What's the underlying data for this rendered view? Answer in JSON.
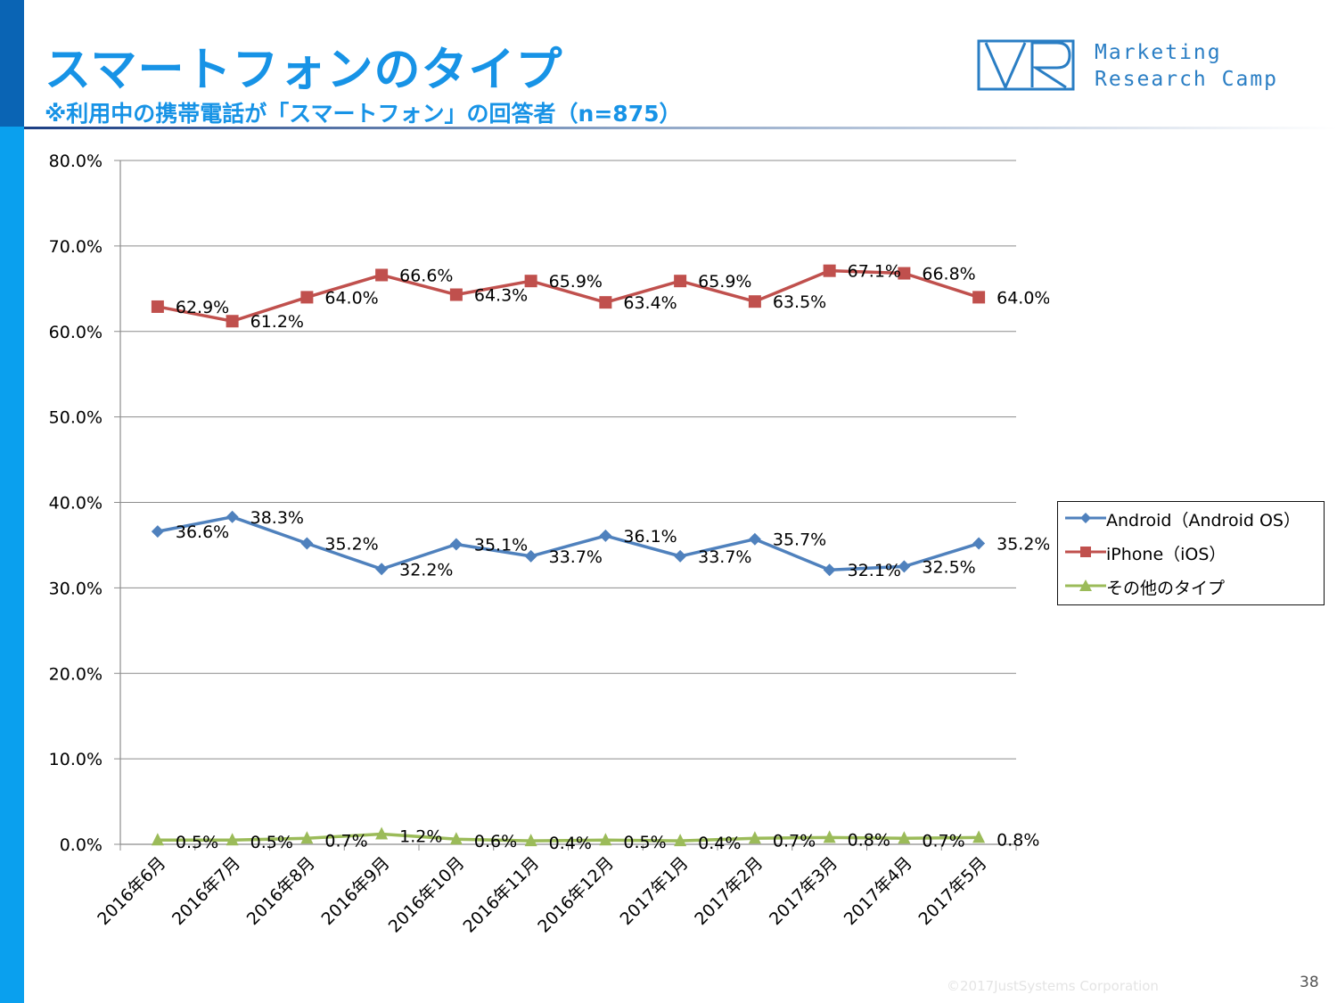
{
  "slide": {
    "title": "スマートフォンのタイプ",
    "subtitle": "※利用中の携帯電話が「スマートフォン」の回答者（n=875）",
    "logo_line1": "Marketing",
    "logo_line2": "Research Camp",
    "copyright": "©2017JustSystems Corporation",
    "page_number": "38"
  },
  "colors": {
    "accent": "#1793e6",
    "sidebar_dark": "#0a64b4",
    "sidebar_light": "#0aa0ee",
    "android": "#4f81bd",
    "iphone": "#c0504d",
    "other": "#9bbb59"
  },
  "chart_data": {
    "type": "line",
    "title": "",
    "xlabel": "",
    "ylabel": "",
    "ylim": [
      0,
      80
    ],
    "ytick_labels": [
      "0.0%",
      "10.0%",
      "20.0%",
      "30.0%",
      "40.0%",
      "50.0%",
      "60.0%",
      "70.0%",
      "80.0%"
    ],
    "grid": true,
    "legend_position": "right",
    "categories": [
      "2016年6月",
      "2016年7月",
      "2016年8月",
      "2016年9月",
      "2016年10月",
      "2016年11月",
      "2016年12月",
      "2017年1月",
      "2017年2月",
      "2017年3月",
      "2017年4月",
      "2017年5月"
    ],
    "series": [
      {
        "name": "Android（Android OS）",
        "color": "#4f81bd",
        "marker": "diamond",
        "values": [
          36.6,
          38.3,
          35.2,
          32.2,
          35.1,
          33.7,
          36.1,
          33.7,
          35.7,
          32.1,
          32.5,
          35.2
        ],
        "labels": [
          "36.6%",
          "38.3%",
          "35.2%",
          "32.2%",
          "35.1%",
          "33.7%",
          "36.1%",
          "33.7%",
          "35.7%",
          "32.1%",
          "32.5%",
          "35.2%"
        ]
      },
      {
        "name": "iPhone（iOS）",
        "color": "#c0504d",
        "marker": "square",
        "values": [
          62.9,
          61.2,
          64.0,
          66.6,
          64.3,
          65.9,
          63.4,
          65.9,
          63.5,
          67.1,
          66.8,
          64.0
        ],
        "labels": [
          "62.9%",
          "61.2%",
          "64.0%",
          "66.6%",
          "64.3%",
          "65.9%",
          "63.4%",
          "65.9%",
          "63.5%",
          "67.1%",
          "66.8%",
          "64.0%"
        ]
      },
      {
        "name": "その他のタイプ",
        "color": "#9bbb59",
        "marker": "triangle",
        "values": [
          0.5,
          0.5,
          0.7,
          1.2,
          0.6,
          0.4,
          0.5,
          0.4,
          0.7,
          0.8,
          0.7,
          0.8
        ],
        "labels": [
          "0.5%",
          "0.5%",
          "0.7%",
          "1.2%",
          "0.6%",
          "0.4%",
          "0.5%",
          "0.4%",
          "0.7%",
          "0.8%",
          "0.7%",
          "0.8%"
        ]
      }
    ]
  }
}
